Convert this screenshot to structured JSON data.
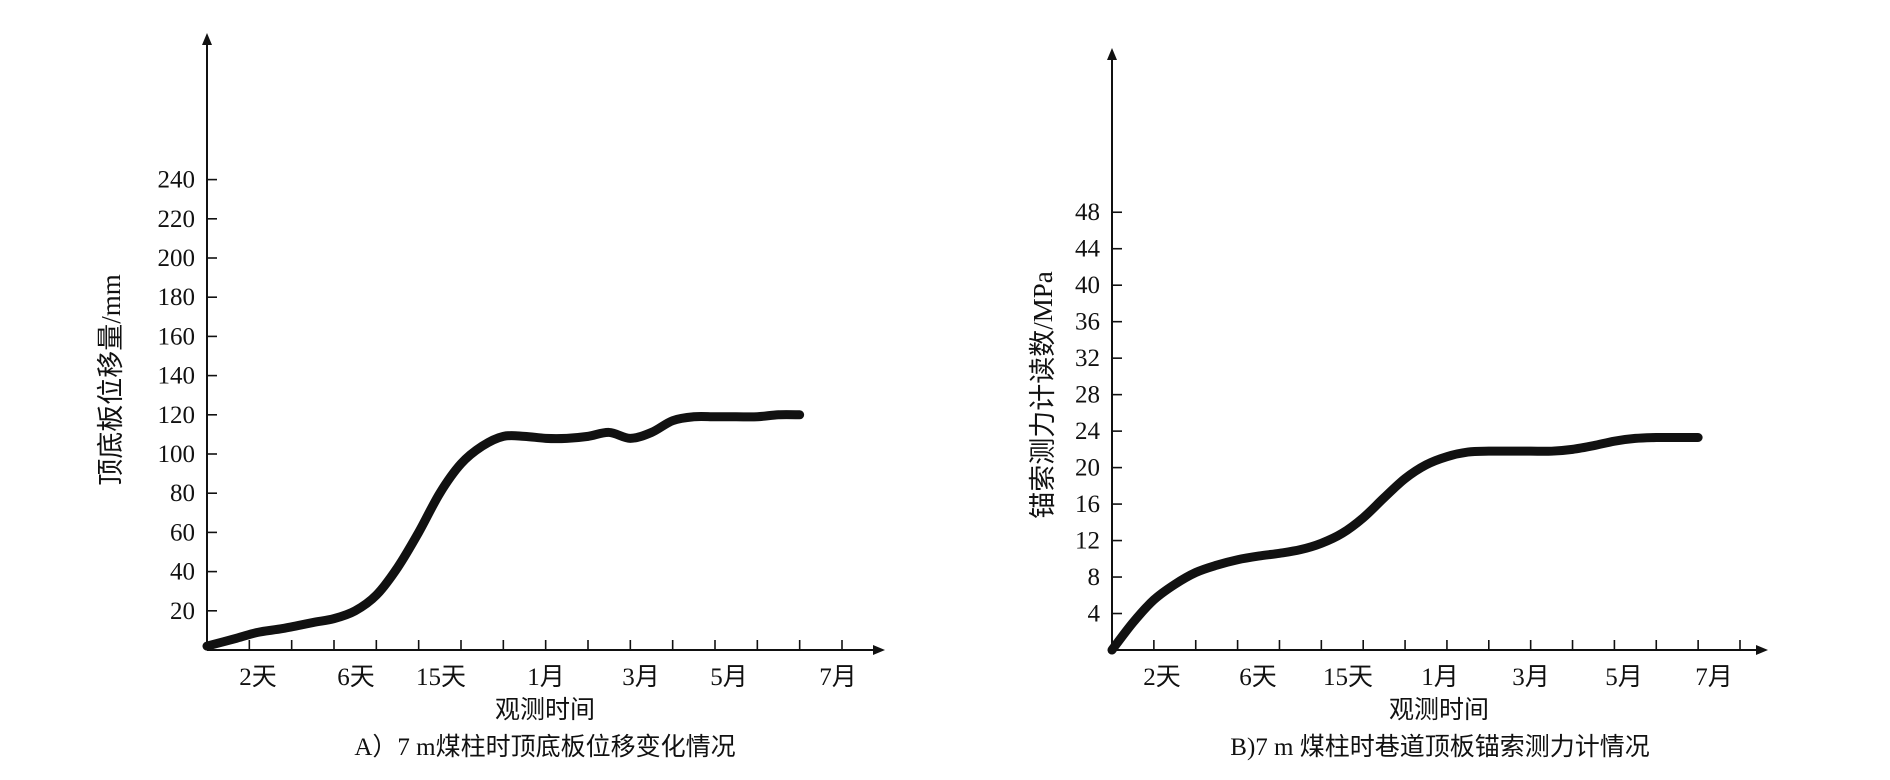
{
  "chart_data": [
    {
      "type": "line",
      "caption": "A）7 m煤柱时顶底板位移变化情况",
      "xlabel": "观测时间",
      "ylabel": "顶底板位移量/mm",
      "ylim": [
        0,
        250
      ],
      "yticks": [
        20,
        40,
        60,
        80,
        100,
        120,
        140,
        160,
        180,
        200,
        220,
        240
      ],
      "categories": [
        "2天",
        "6天",
        "15天",
        "1月",
        "3月",
        "5月",
        "7月"
      ],
      "x_range": [
        0,
        15
      ],
      "grid": false,
      "legend": "none",
      "series": [
        {
          "x": [
            0,
            0.7,
            1.2,
            1.8,
            2.5,
            3.0,
            3.5,
            4.0,
            4.5,
            5.0,
            5.5,
            6.0,
            6.5,
            7.0,
            7.5,
            8.0,
            8.5,
            9.0,
            9.5,
            10.0,
            10.5,
            11.0,
            11.5,
            12.0,
            12.5,
            13.0,
            13.5,
            14.0
          ],
          "values": [
            2,
            6,
            9,
            11,
            14,
            16,
            20,
            28,
            42,
            60,
            80,
            95,
            104,
            109,
            109,
            108,
            108,
            109,
            111,
            108,
            111,
            117,
            119,
            119,
            119,
            119,
            120,
            120
          ]
        }
      ]
    },
    {
      "type": "line",
      "caption": "B)7 m 煤柱时巷道顶板锚索测力计情况",
      "xlabel": "观测时间",
      "ylabel": "锚索测力计读数/MPa",
      "ylim": [
        0,
        50
      ],
      "yticks": [
        4,
        8,
        12,
        16,
        20,
        24,
        28,
        32,
        36,
        40,
        44,
        48
      ],
      "categories": [
        "2天",
        "6天",
        "15天",
        "1月",
        "3月",
        "5月",
        "7月"
      ],
      "x_range": [
        0,
        15
      ],
      "grid": false,
      "legend": "none",
      "series": [
        {
          "x": [
            0,
            0.5,
            1.0,
            1.5,
            2.0,
            2.5,
            3.0,
            3.5,
            4.0,
            4.5,
            5.0,
            5.5,
            6.0,
            6.5,
            7.0,
            7.5,
            8.0,
            8.5,
            9.0,
            9.5,
            10.0,
            10.5,
            11.0,
            11.5,
            12.0,
            12.5,
            13.0,
            13.5,
            14.0
          ],
          "values": [
            0,
            3,
            5.5,
            7.2,
            8.5,
            9.3,
            9.9,
            10.3,
            10.6,
            11.0,
            11.7,
            12.8,
            14.5,
            16.7,
            18.8,
            20.3,
            21.2,
            21.7,
            21.8,
            21.8,
            21.8,
            21.8,
            22.0,
            22.4,
            22.9,
            23.2,
            23.3,
            23.3,
            23.3
          ]
        }
      ]
    }
  ]
}
